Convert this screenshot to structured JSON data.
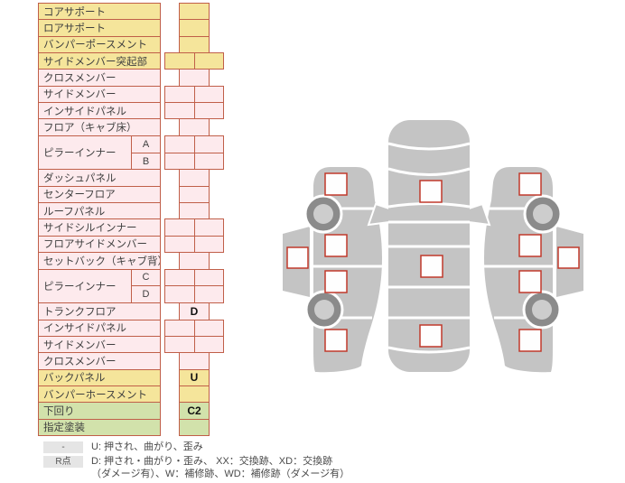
{
  "colors": {
    "yellow": "#f5e59b",
    "pink": "#fdeaed",
    "green": "#d2e2ab",
    "border": "#c05f49",
    "label_text": "#3f3f3f",
    "value_text": "#111111",
    "car_gray": "#c4c4c4",
    "wheel_dark": "#8b8b8b",
    "wheel_hub": "#cdcdcd",
    "checkbox_border": "#c0392b",
    "badge_bg": "#e5e5e5",
    "legend_text": "#4a4a4a"
  },
  "table": {
    "rows": [
      {
        "label": "コアサポート",
        "color": "yellow",
        "cells": "single",
        "value": ""
      },
      {
        "label": "ロアサポート",
        "color": "yellow",
        "cells": "single",
        "value": ""
      },
      {
        "label": "バンパーポースメント",
        "color": "yellow",
        "cells": "single",
        "value": ""
      },
      {
        "label": "サイドメンバー突起部",
        "color": "yellow",
        "cells": "double",
        "value": ""
      },
      {
        "label": "クロスメンバー",
        "color": "pink",
        "cells": "single",
        "value": ""
      },
      {
        "label": "サイドメンバー",
        "color": "pink",
        "cells": "double",
        "value": ""
      },
      {
        "label": "インサイドパネル",
        "color": "pink",
        "cells": "double",
        "value": ""
      },
      {
        "label": "フロア（キャブ床）",
        "color": "pink",
        "cells": "single",
        "value": ""
      },
      {
        "label": "ピラーインナー",
        "color": "pink",
        "cells": "double",
        "value": "",
        "subs": [
          "A",
          "B"
        ]
      },
      {
        "label": "ダッシュパネル",
        "color": "pink",
        "cells": "single",
        "value": ""
      },
      {
        "label": "センターフロア",
        "color": "pink",
        "cells": "single",
        "value": ""
      },
      {
        "label": "ルーフパネル",
        "color": "pink",
        "cells": "single",
        "value": ""
      },
      {
        "label": "サイドシルインナー",
        "color": "pink",
        "cells": "double",
        "value": ""
      },
      {
        "label": "フロアサイドメンバー",
        "color": "pink",
        "cells": "double",
        "value": ""
      },
      {
        "label": "セットバック（キャブ背）",
        "color": "pink",
        "cells": "single",
        "value": ""
      },
      {
        "label": "ピラーインナー",
        "color": "pink",
        "cells": "double",
        "value": "",
        "subs": [
          "C",
          "D"
        ]
      },
      {
        "label": "トランクフロア",
        "color": "pink",
        "cells": "single",
        "value": "D"
      },
      {
        "label": "インサイドパネル",
        "color": "pink",
        "cells": "double",
        "value": ""
      },
      {
        "label": "サイドメンバー",
        "color": "pink",
        "cells": "double",
        "value": ""
      },
      {
        "label": "クロスメンバー",
        "color": "pink",
        "cells": "single",
        "value": ""
      },
      {
        "label": "バックパネル",
        "color": "yellow",
        "cells": "single",
        "value": "U"
      },
      {
        "label": "バンパーホースメント",
        "color": "yellow",
        "cells": "single",
        "value": ""
      },
      {
        "label": "下回り",
        "color": "green",
        "cells": "single",
        "value": "C2"
      },
      {
        "label": "指定塗装",
        "color": "green",
        "cells": "single",
        "value": ""
      }
    ]
  },
  "legend": {
    "items": [
      {
        "badge": "-",
        "lines": [
          "U: 押され、曲がり、歪み"
        ]
      },
      {
        "badge": "R点",
        "lines": [
          "D: 押され・曲がり・歪み、 XX：交換跡、XD：交換跡",
          "（ダメージ有）、W：補修跡、WD：補修跡（ダメージ有）"
        ]
      }
    ]
  }
}
